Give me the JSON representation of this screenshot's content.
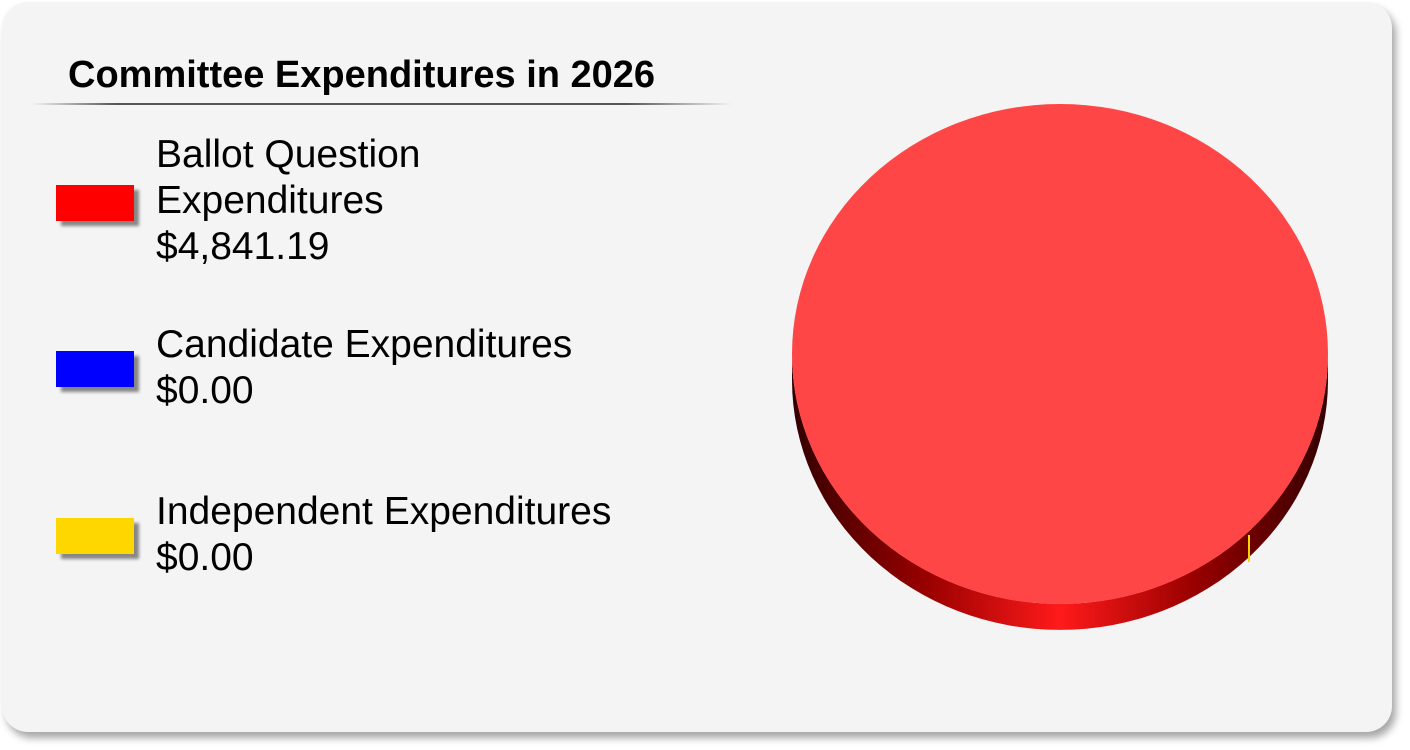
{
  "chart_data": {
    "type": "pie",
    "title": "Committee Expenditures in 2026",
    "slices": [
      {
        "label_lines": [
          "Ballot Question",
          "Expenditures"
        ],
        "amount": "$4,841.19",
        "value": 4841.19,
        "color": "#ff0000",
        "face_color": "#ff4646"
      },
      {
        "label_lines": [
          "Candidate Expenditures"
        ],
        "amount": "$0.00",
        "value": 0,
        "color": "#0000ff",
        "face_color": "#4646ff"
      },
      {
        "label_lines": [
          "Independent Expenditures"
        ],
        "amount": "$0.00",
        "value": 0,
        "color": "#ffd700",
        "face_color": "#ffe34d"
      }
    ],
    "legend_position": "left"
  }
}
